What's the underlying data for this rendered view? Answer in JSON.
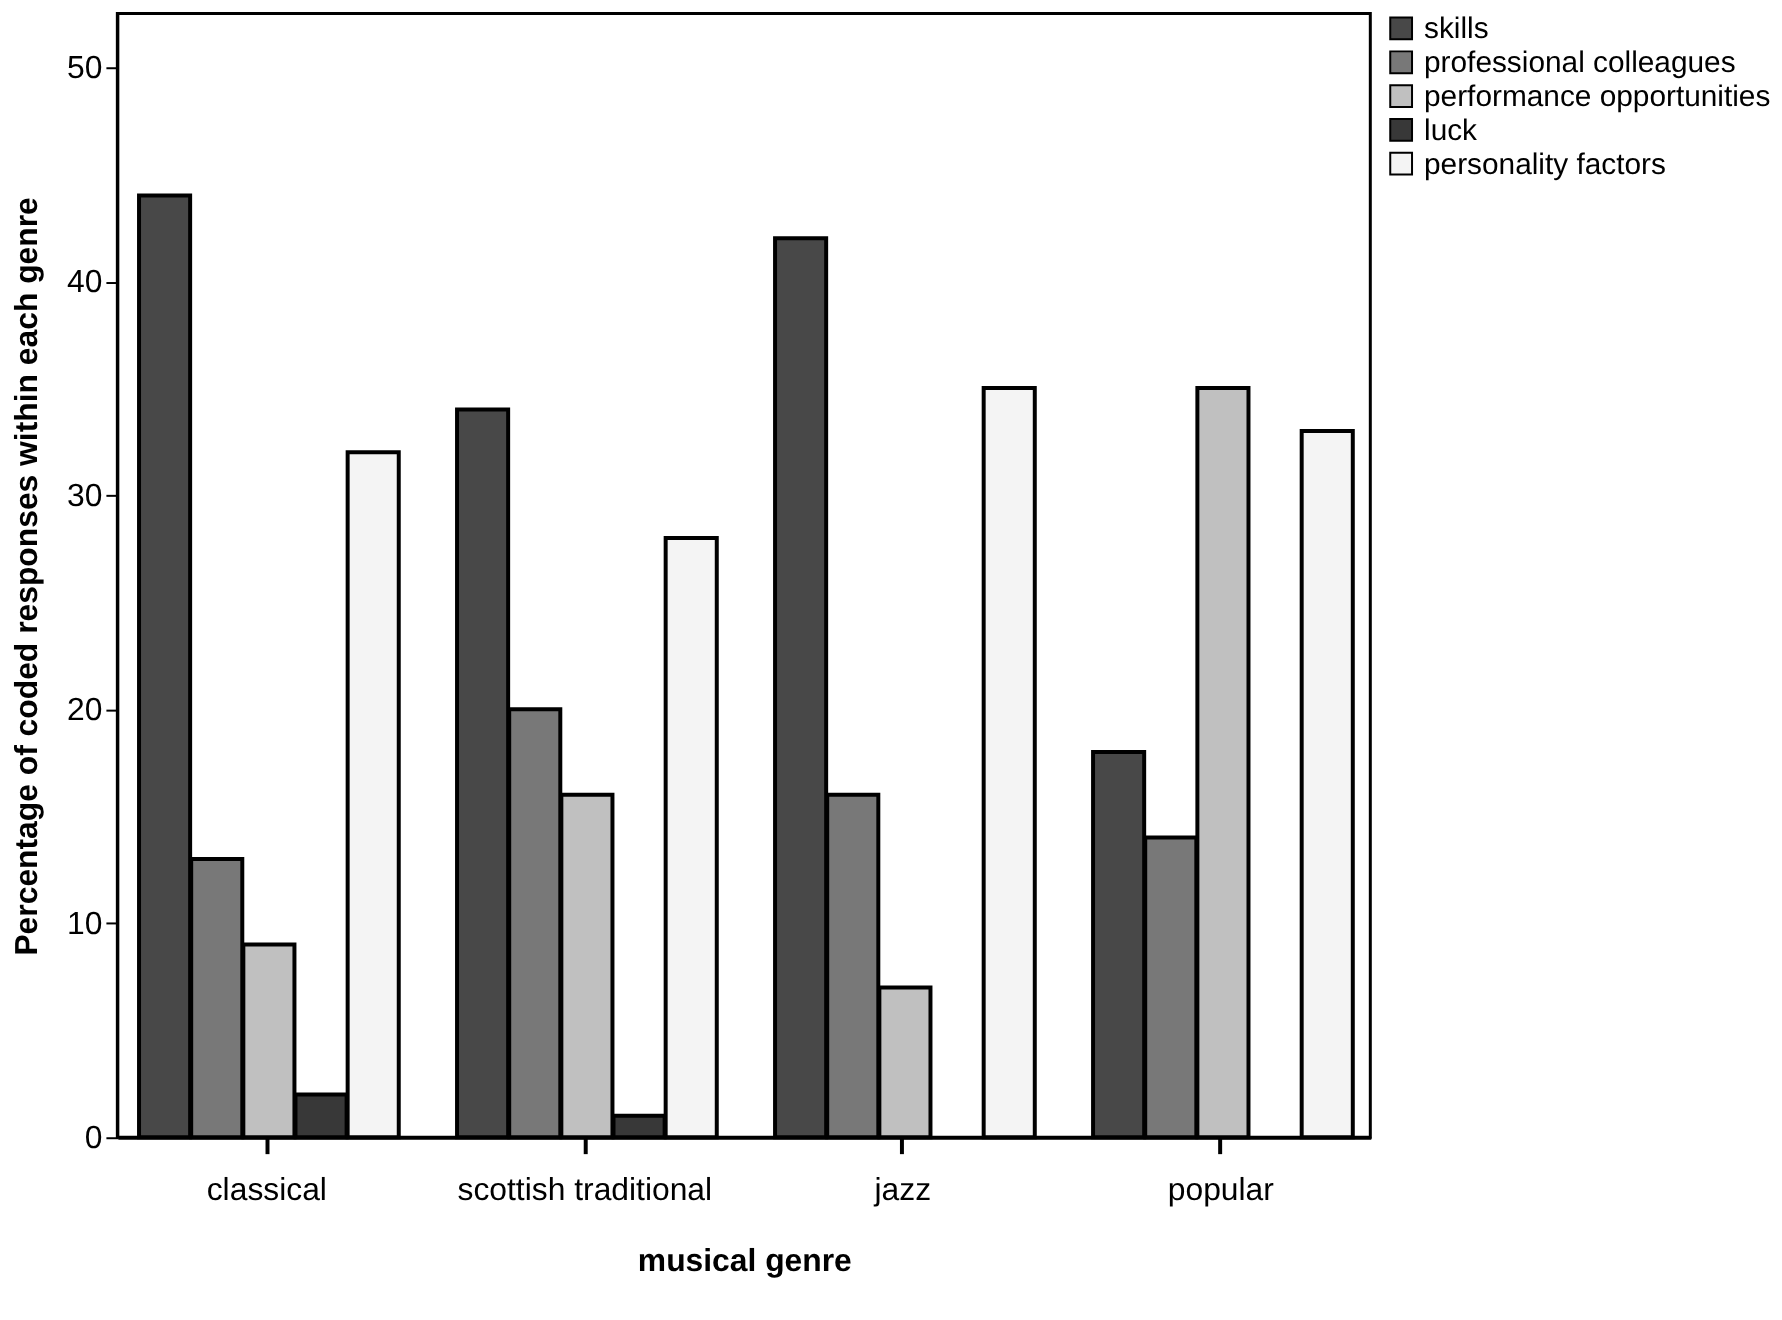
{
  "chart_data": {
    "type": "bar",
    "xlabel": "musical genre",
    "ylabel": "Percentage of coded responses within each genre",
    "categories": [
      "classical",
      "scottish traditional",
      "jazz",
      "popular"
    ],
    "series": [
      {
        "name": "skills",
        "color": "#484848",
        "values": [
          44,
          34,
          42,
          18
        ]
      },
      {
        "name": "professional colleagues",
        "color": "#787878",
        "values": [
          13,
          20,
          16,
          14
        ]
      },
      {
        "name": "performance opportunities",
        "color": "#c0c0c0",
        "values": [
          9,
          16,
          7,
          35
        ]
      },
      {
        "name": "luck",
        "color": "#383838",
        "values": [
          2,
          1,
          0,
          0
        ]
      },
      {
        "name": "personality factors",
        "color": "#f4f4f4",
        "values": [
          32,
          28,
          35,
          33
        ]
      }
    ],
    "ylim": [
      0,
      52.5
    ],
    "yticks": [
      0,
      10,
      20,
      30,
      40,
      50
    ],
    "grid": false,
    "legend": "top right"
  }
}
